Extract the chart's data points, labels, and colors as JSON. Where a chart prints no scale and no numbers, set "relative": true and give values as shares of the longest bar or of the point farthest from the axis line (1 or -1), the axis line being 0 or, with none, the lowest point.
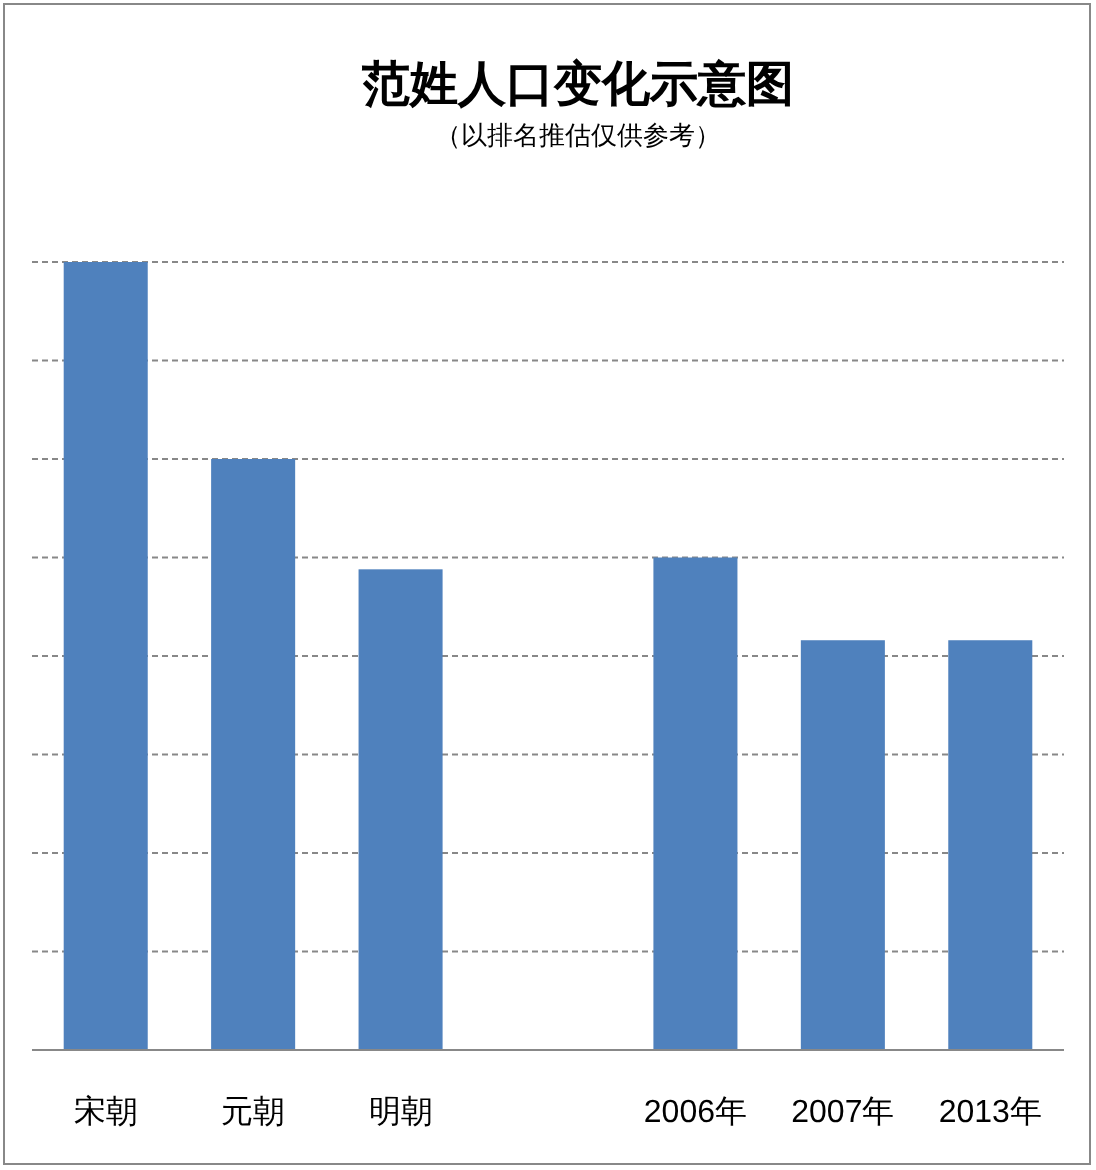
{
  "chart_data": {
    "type": "bar",
    "title": "范姓人口变化示意图",
    "subtitle": "（以排名推估仅供参考）",
    "categories": [
      "宋朝",
      "元朝",
      "明朝",
      null,
      "2006年",
      "2007年",
      "2013年"
    ],
    "values": [
      1,
      0.75,
      0.61,
      null,
      0.625,
      0.52,
      0.52
    ],
    "color": "#4f81bd",
    "relative": true,
    "grid": "y"
  }
}
